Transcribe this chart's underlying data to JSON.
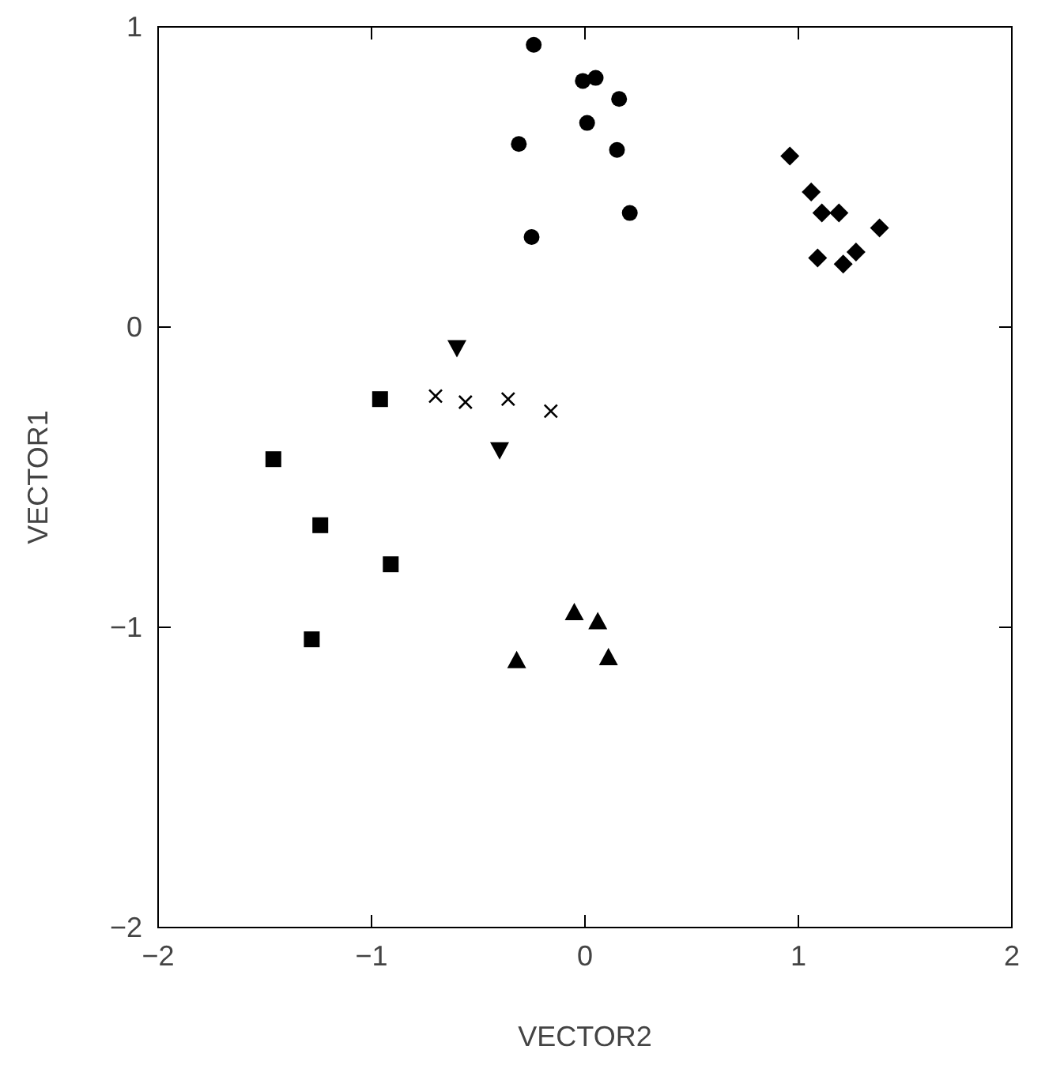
{
  "chart_data": {
    "type": "scatter",
    "xlabel": "VECTOR2",
    "ylabel": "VECTOR1",
    "xlim": [
      -2,
      2
    ],
    "ylim": [
      -2,
      1
    ],
    "xticks": [
      -2,
      -1,
      0,
      1,
      2
    ],
    "yticks": [
      -2,
      -1,
      0,
      1
    ],
    "series": [
      {
        "color": "#000000",
        "marker": "circle",
        "x": [
          -0.24,
          -0.01,
          0.05,
          0.16,
          -0.31,
          0.01,
          0.15,
          0.21,
          -0.25
        ],
        "values": [
          0.94,
          0.82,
          0.83,
          0.76,
          0.61,
          0.68,
          0.59,
          0.38,
          0.3
        ]
      },
      {
        "color": "#000000",
        "marker": "diamond",
        "x": [
          0.96,
          1.06,
          1.11,
          1.19,
          1.38,
          1.27,
          1.09,
          1.21
        ],
        "values": [
          0.57,
          0.45,
          0.38,
          0.38,
          0.33,
          0.25,
          0.23,
          0.21
        ]
      },
      {
        "color": "#000000",
        "marker": "cross",
        "x": [
          -0.7,
          -0.56,
          -0.36,
          -0.16
        ],
        "values": [
          -0.23,
          -0.25,
          -0.24,
          -0.28
        ]
      },
      {
        "color": "#000000",
        "marker": "triangle-down",
        "x": [
          -0.6,
          -0.4
        ],
        "values": [
          -0.07,
          -0.41
        ]
      },
      {
        "color": "#000000",
        "marker": "square",
        "x": [
          -0.96,
          -1.46,
          -1.24,
          -0.91,
          -1.28
        ],
        "values": [
          -0.24,
          -0.44,
          -0.66,
          -0.79,
          -1.04
        ]
      },
      {
        "color": "#000000",
        "marker": "triangle",
        "x": [
          -0.05,
          0.06,
          -0.32,
          0.11
        ],
        "values": [
          -0.95,
          -0.98,
          -1.11,
          -1.1
        ]
      }
    ]
  }
}
